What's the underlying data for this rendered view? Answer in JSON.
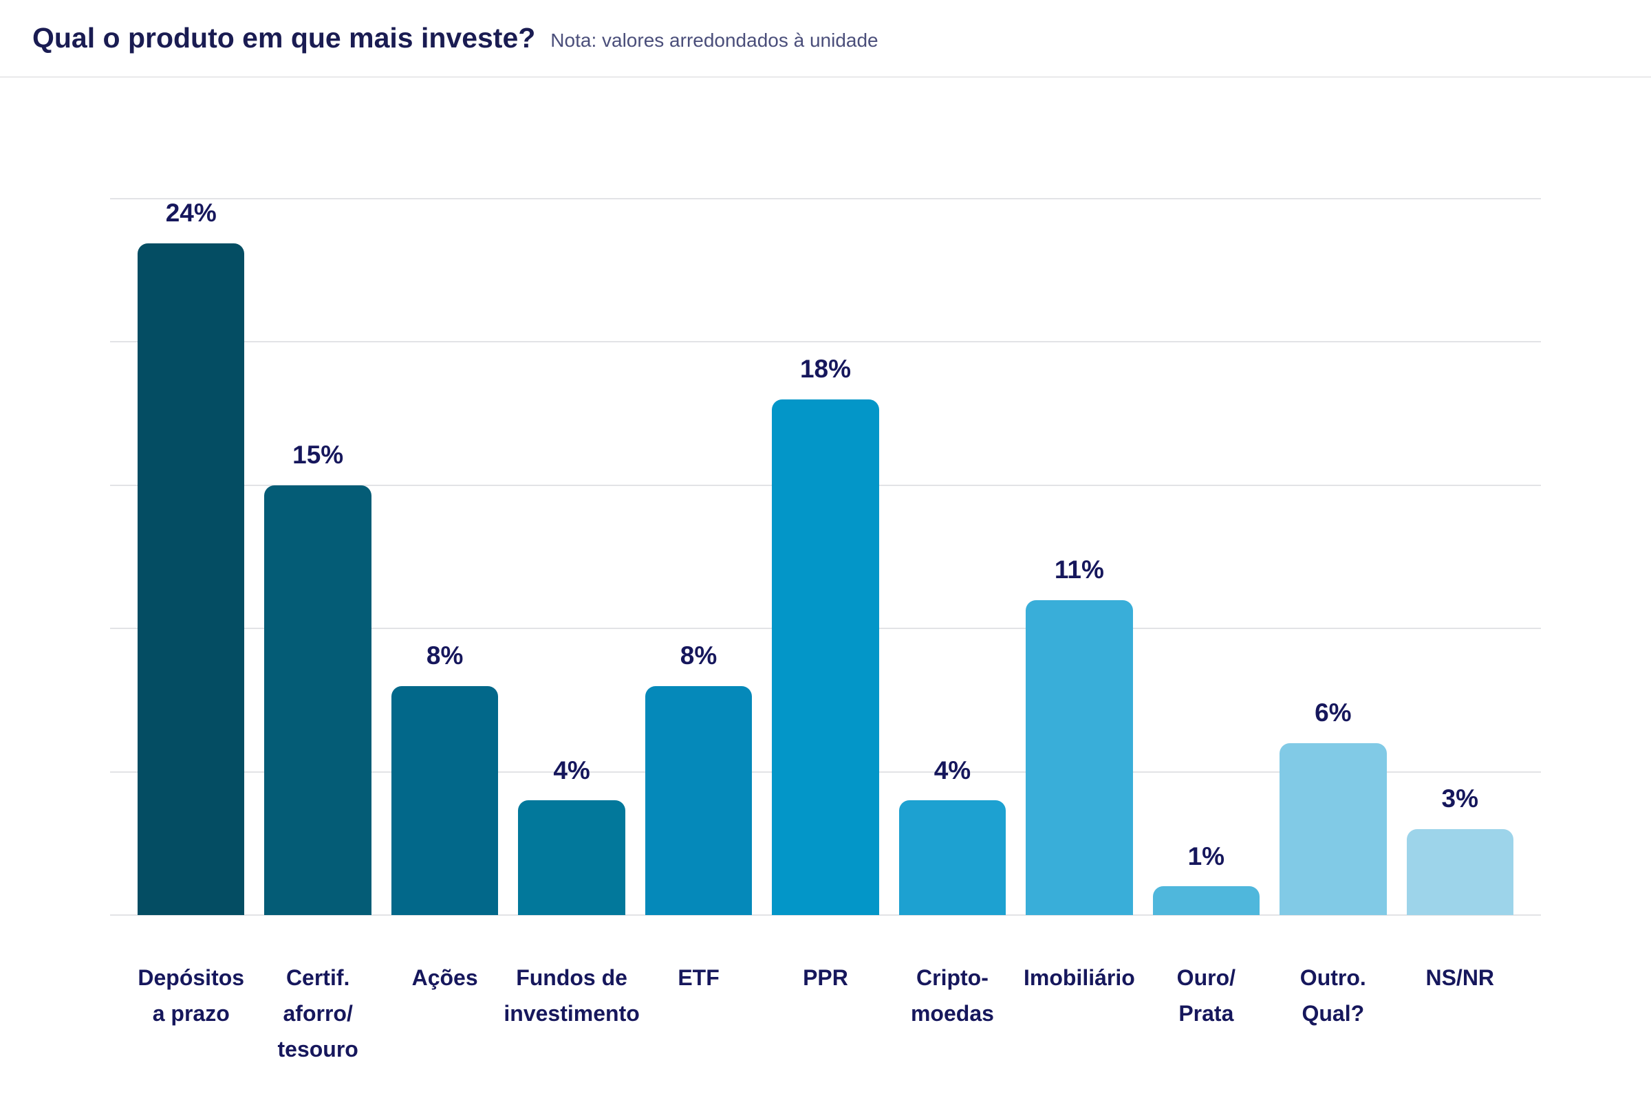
{
  "header": {
    "title": "Qual o produto em que mais investe?",
    "note": "Nota: valores arredondados à unidade"
  },
  "chart_data": {
    "type": "bar",
    "title": "Qual o produto em que mais investe?",
    "subtitle": "Nota: valores arredondados à unidade",
    "categories": [
      "Depósitos\na prazo",
      "Certif.\naforro/\ntesouro",
      "Ações",
      "Fundos de\ninvestimento",
      "ETF",
      "PPR",
      "Cripto-\nmoedas",
      "Imobiliário",
      "Ouro/\nPrata",
      "Outro.\nQual?",
      "NS/NR"
    ],
    "values": [
      24,
      15,
      8,
      4,
      8,
      18,
      4,
      11,
      1,
      6,
      3
    ],
    "value_labels": [
      "24%",
      "15%",
      "8%",
      "4%",
      "8%",
      "18%",
      "4%",
      "11%",
      "1%",
      "6%",
      "3%"
    ],
    "bar_colors": [
      "#044D63",
      "#045C76",
      "#02688A",
      "#02789B",
      "#0589BA",
      "#0396C8",
      "#1DA1D1",
      "#39AED9",
      "#4FB7DC",
      "#81CAE6",
      "#9DD4EA"
    ],
    "unit": "%",
    "xlabel": "",
    "ylabel": "",
    "ylim": [
      0,
      25
    ],
    "gridline_step": 5,
    "grid": true,
    "legend": false,
    "annotations": "valores arredondados à unidade"
  },
  "colors": {
    "title_text": "#1A1C52",
    "note_text": "#4A4E7A",
    "label_text": "#16175C",
    "gridline": "#E2E3E6",
    "header_divider": "#E9E9EB",
    "background": "#FFFFFF"
  }
}
